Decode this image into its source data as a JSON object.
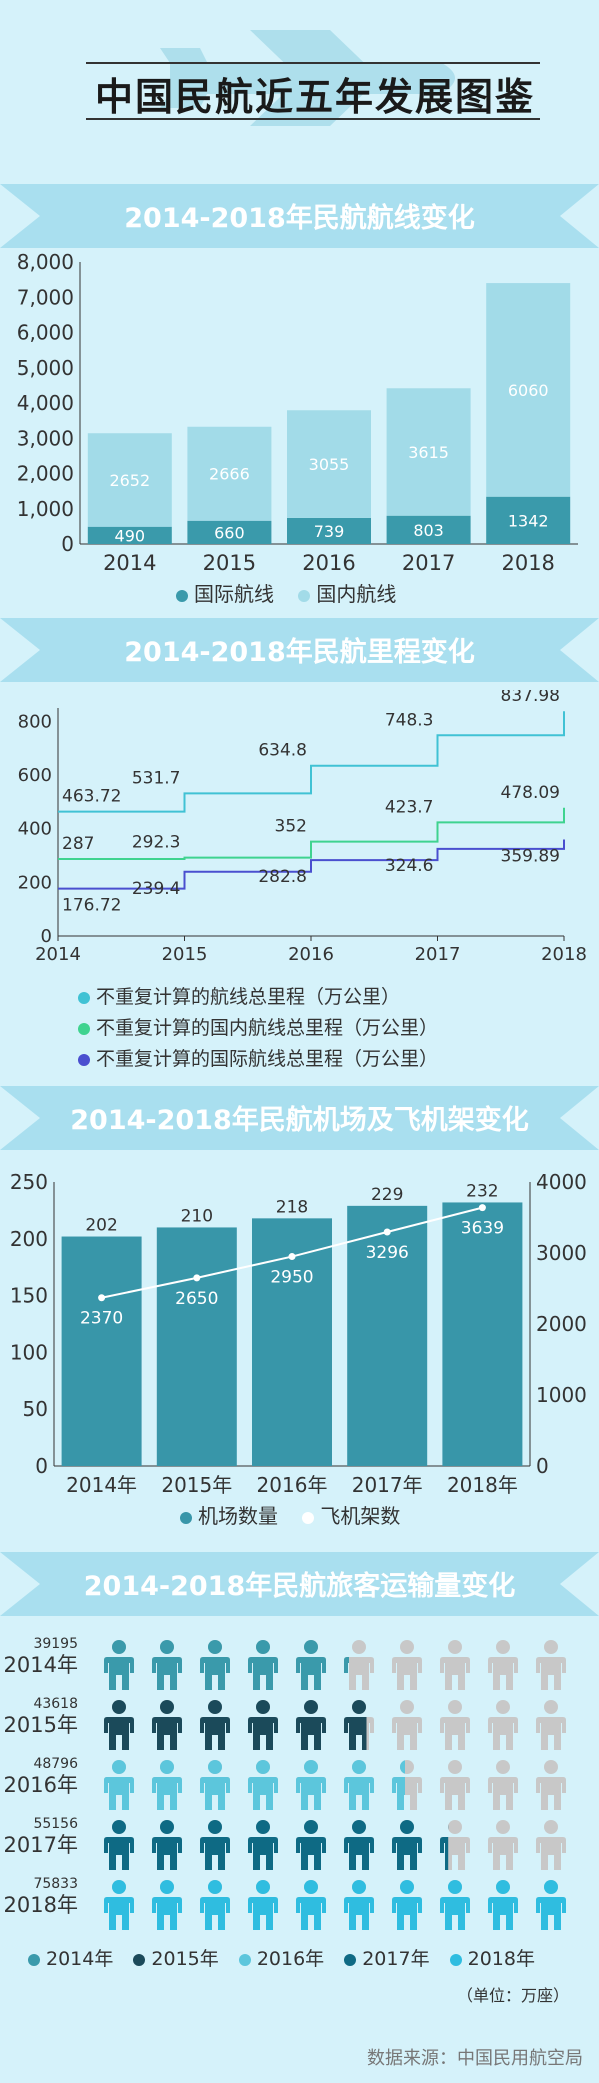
{
  "main_title": "中国民航近五年发展图鉴",
  "sections": {
    "routes_title": "2014-2018年民航航线变化",
    "mileage_title": "2014-2018年民航里程变化",
    "airports_title": "2014-2018年民航机场及飞机架变化",
    "passengers_title": "2014-2018年民航旅客运输量变化"
  },
  "colors": {
    "background": "#d5f2fa",
    "header_band": "#a9dfef",
    "intl_routes": "#3a9aab",
    "dom_routes": "#a2dbe8",
    "mileage_total": "#40c2d4",
    "mileage_domestic": "#3fd38f",
    "mileage_international": "#4a4fcf",
    "airports_bar": "#3896a9",
    "aircraft_line": "#ffffff"
  },
  "chart_data": [
    {
      "id": "routes",
      "type": "bar",
      "stacked": true,
      "categories": [
        "2014",
        "2015",
        "2016",
        "2017",
        "2018"
      ],
      "series": [
        {
          "name": "国际航线",
          "values": [
            490,
            660,
            739,
            803,
            1342
          ]
        },
        {
          "name": "国内航线",
          "values": [
            2652,
            2666,
            3055,
            3615,
            6060
          ]
        }
      ],
      "ylim": [
        0,
        8000
      ],
      "yticks": [
        "0",
        "1,000",
        "2,000",
        "3,000",
        "4,000",
        "5,000",
        "6,000",
        "7,000",
        "8,000"
      ],
      "legend": "bottom"
    },
    {
      "id": "mileage",
      "type": "line",
      "step": true,
      "x": [
        "2014",
        "2015",
        "2016",
        "2017",
        "2018"
      ],
      "series": [
        {
          "name": "不重复计算的航线总里程（万公里）",
          "values": [
            463.72,
            531.7,
            634.8,
            748.3,
            837.98
          ],
          "labels": [
            "463.72",
            "531.7",
            "634.8",
            "748.3",
            "837.98"
          ]
        },
        {
          "name": "不重复计算的国内航线总里程（万公里）",
          "values": [
            287,
            292.3,
            352,
            423.7,
            478.09
          ],
          "labels": [
            "287",
            "292.3",
            "352",
            "423.7",
            "478.09"
          ]
        },
        {
          "name": "不重复计算的国际航线总里程（万公里）",
          "values": [
            176.72,
            239.4,
            282.8,
            324.6,
            359.89
          ],
          "labels": [
            "176.72",
            "239.4",
            "282.8",
            "324.6",
            "359.89"
          ]
        }
      ],
      "ylim": [
        0,
        850
      ],
      "yticks": [
        "0",
        "200",
        "400",
        "600",
        "800"
      ],
      "legend": "bottom"
    },
    {
      "id": "airports",
      "type": "bar",
      "categories": [
        "2014年",
        "2015年",
        "2016年",
        "2017年",
        "2018年"
      ],
      "series": [
        {
          "name": "机场数量",
          "values": [
            202,
            210,
            218,
            229,
            232
          ],
          "axis": "left"
        },
        {
          "name": "飞机架数",
          "values": [
            2370,
            2650,
            2950,
            3296,
            3639
          ],
          "axis": "right",
          "type": "line"
        }
      ],
      "ylim_left": [
        0,
        250
      ],
      "ylim_right": [
        0,
        4000
      ],
      "yticks_left": [
        "0",
        "50",
        "100",
        "150",
        "200",
        "250"
      ],
      "yticks_right": [
        "0",
        "1000",
        "2000",
        "3000",
        "4000"
      ],
      "legend": "bottom"
    },
    {
      "id": "passengers",
      "type": "bar",
      "categories": [
        "2014年",
        "2015年",
        "2016年",
        "2017年",
        "2018年"
      ],
      "values": [
        39195,
        43618,
        48796,
        55156,
        75833
      ],
      "value_labels": [
        "39195",
        "43618",
        "48796",
        "55156",
        "75833"
      ],
      "icon_scale_max": 75833,
      "icons_per_row": 10,
      "colors": [
        "#3a9aab",
        "#1b4a5a",
        "#5cc6dc",
        "#0e6a84",
        "#2fbde0"
      ],
      "empty_color": "#c8c8c8",
      "unit": "（单位：万座）",
      "legend": "bottom"
    }
  ],
  "source": "数据来源：中国民用航空局"
}
